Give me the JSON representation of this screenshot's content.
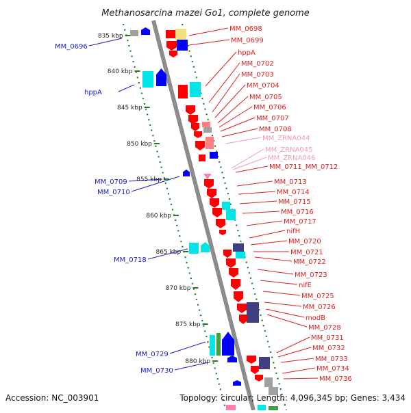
{
  "title": "Methanosarcina mazei Go1, complete genome",
  "footer": {
    "accession": "Accession: NC_003901",
    "stats": "Topology: circular; Length: 4,096,345 bp; Genes: 3,434"
  },
  "colors": {
    "backbone": "#8c8c8c",
    "ticks": "#1e7a1e",
    "label_left": "#1a1acc",
    "label_right": "#e01b1b",
    "label_rna": "#f09ac0",
    "genes": [
      "#ff0000",
      "#0000ff",
      "#00e5e5",
      "#404080",
      "#f0e080",
      "#ff8080",
      "#a0a0a0",
      "#40a040",
      "#ff80b0"
    ]
  },
  "ticks": [
    "835 kbp",
    "840 kbp",
    "845 kbp",
    "850 kbp",
    "855 kbp",
    "860 kbp",
    "865 kbp",
    "870 kbp",
    "875 kbp",
    "880 kbp"
  ],
  "left_labels": [
    "MM_0696",
    "hppA",
    "MM_0709",
    "MM_0710",
    "MM_0718",
    "MM_0729",
    "MM_0730"
  ],
  "right_labels": [
    "MM_0698",
    "MM_0699",
    "hppA",
    "MM_0702",
    "MM_0703",
    "MM_0704",
    "MM_0705",
    "MM_0706",
    "MM_0707",
    "MM_0708",
    "MM_ZRNA044",
    "MM_ZRNA045",
    "MM_ZRNA046",
    "MM_0711_MM_0712",
    "MM_0713",
    "MM_0714",
    "MM_0715",
    "MM_0716",
    "MM_0717",
    "nifH",
    "MM_0720",
    "MM_0721",
    "MM_0722",
    "MM_0723",
    "nifE",
    "MM_0725",
    "MM_0726",
    "modB",
    "MM_0728",
    "MM_0731",
    "MM_0732",
    "MM_0733",
    "MM_0734",
    "MM_0736"
  ],
  "rna_labels": [
    "MM_ZRNA044",
    "MM_ZRNA045",
    "MM_ZRNA046"
  ]
}
